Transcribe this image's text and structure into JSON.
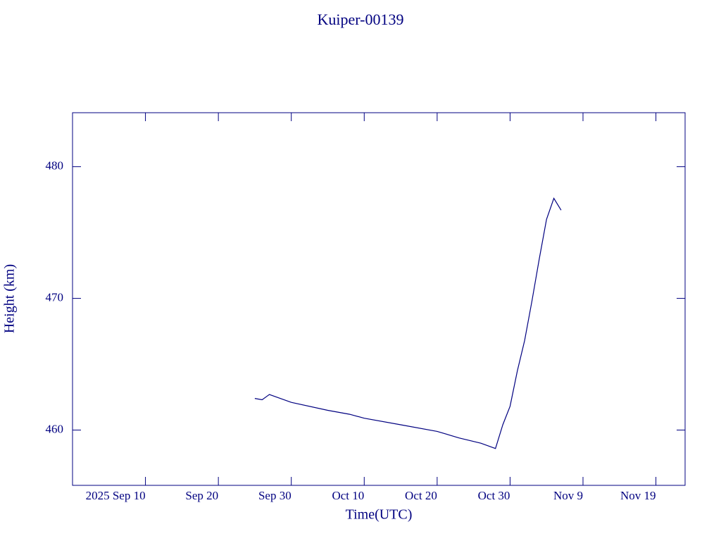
{
  "chart_data": {
    "type": "line",
    "title": "Kuiper-00139",
    "x_label": "Time(UTC)",
    "y_label": "Height (km)",
    "x": [
      "2025-09-25",
      "2025-09-26",
      "2025-09-27",
      "2025-09-30",
      "2025-10-05",
      "2025-10-08",
      "2025-10-10",
      "2025-10-15",
      "2025-10-20",
      "2025-10-23",
      "2025-10-26",
      "2025-10-28",
      "2025-10-29",
      "2025-10-30",
      "2025-10-31",
      "2025-11-01",
      "2025-11-02",
      "2025-11-03",
      "2025-11-04",
      "2025-11-05",
      "2025-11-06"
    ],
    "series": [
      {
        "name": "Kuiper-00139",
        "color": "#000080",
        "values": [
          462.4,
          462.3,
          462.7,
          462.1,
          461.5,
          461.2,
          460.9,
          460.4,
          459.9,
          459.4,
          459.0,
          458.6,
          460.4,
          461.8,
          464.5,
          466.8,
          469.8,
          473.0,
          476.0,
          477.6,
          476.7
        ]
      }
    ],
    "xlim": [
      "2025-08-31",
      "2025-11-23"
    ],
    "xticks": [
      {
        "value": "2025-09-10",
        "label": "2025 Sep 10"
      },
      {
        "value": "2025-09-20",
        "label": "Sep 20"
      },
      {
        "value": "2025-09-30",
        "label": "Sep 30"
      },
      {
        "value": "2025-10-10",
        "label": "Oct 10"
      },
      {
        "value": "2025-10-20",
        "label": "Oct 20"
      },
      {
        "value": "2025-10-30",
        "label": "Oct 30"
      },
      {
        "value": "2025-11-09",
        "label": "Nov 9"
      },
      {
        "value": "2025-11-19",
        "label": "Nov 19"
      }
    ],
    "ylim": [
      455.8,
      484.1
    ],
    "yticks": [
      460,
      470,
      480
    ],
    "grid": false
  }
}
